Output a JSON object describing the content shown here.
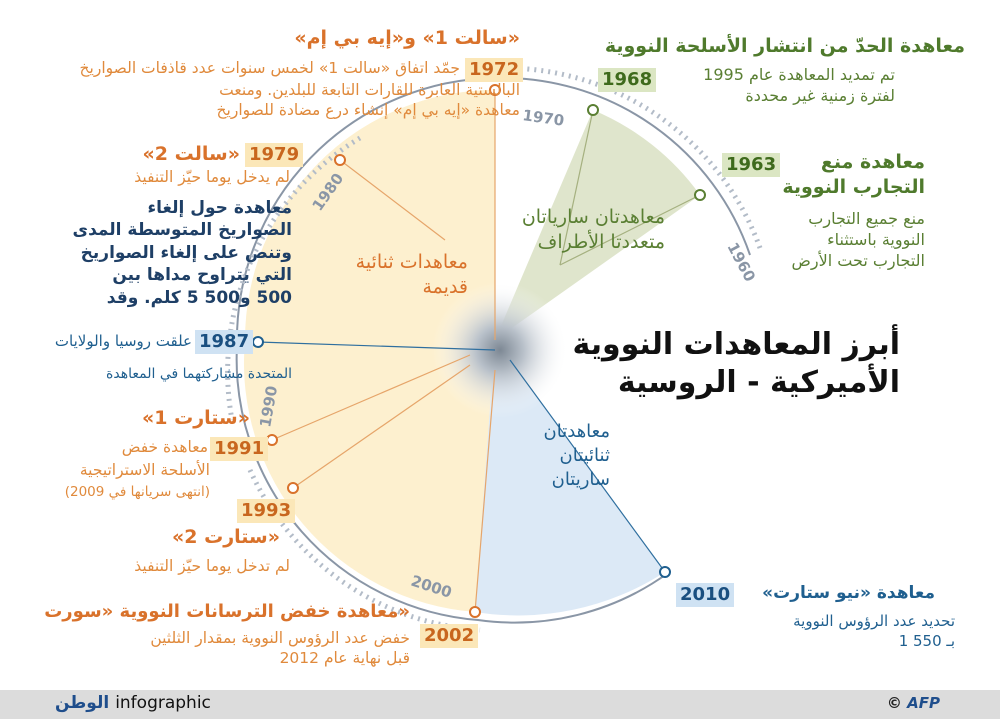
{
  "title_lines": [
    "أبرز المعاهدات النووية",
    "الأميركية - الروسية"
  ],
  "decade_labels": [
    "1960",
    "1970",
    "1980",
    "1990",
    "2000"
  ],
  "sectors": {
    "multilateral": [
      "معاهدتان سارياتان",
      "متعددتا الأطراف"
    ],
    "old_bilateral": [
      "معاهدات ثنائية",
      "قديمة"
    ],
    "bilateral_active": [
      "معاهدتان",
      "ثنائيتان",
      "ساريتان"
    ]
  },
  "events": {
    "e1972": {
      "year": "1972",
      "title": "«سالت 1» و«إيه بي إم»",
      "lines": [
        "جمّد اتفاق «سالت 1» لخمس سنوات عدد قاذفات الصواريخ",
        "البالستية العابرة للقارات التابعة للبلدين. ومنعت",
        "معاهدة «إيه بي إم» إنشاء درع مضادة للصواريخ"
      ]
    },
    "e1979": {
      "year": "1979",
      "title": "«سالت 2»",
      "lines": [
        "لم يدخل يوما حيّز التنفيذ"
      ]
    },
    "e1987": {
      "year": "1987",
      "title_lines": [
        "معاهدة حول إلغاء",
        "الصواريخ المتوسطة المدى",
        "وتنص على إلغاء الصواريخ",
        "التي يتراوح مداها بين",
        "500 و500 5 كلم. وقد"
      ],
      "line_after_year": "علقت روسيا والولايات",
      "last_line": "المتحدة مشاركتهما في المعاهدة"
    },
    "e1991": {
      "year": "1991",
      "title": "«ستارت 1»",
      "lines": [
        "معاهدة خفض",
        "الأسلحة الاستراتيجية",
        "(انتهى سريانها في 2009)"
      ]
    },
    "e1993": {
      "year": "1993",
      "title": "«ستارت 2»",
      "lines": [
        "لم تدخل يوما حيّز التنفيذ"
      ]
    },
    "e2002": {
      "year": "2002",
      "title": "«معاهدة خفض الترسانات النووية «سورت",
      "lines": [
        "خفض عدد الرؤوس النووية بمقدار الثلثين",
        "قبل نهاية عام 2012"
      ]
    },
    "e1968": {
      "year": "1968",
      "title": "معاهدة الحدّ من انتشار الأسلحة النووية",
      "lines": [
        "تم تمديد المعاهدة عام 1995",
        "لفترة زمنية غير محددة"
      ]
    },
    "e1963": {
      "year": "1963",
      "title_lines": [
        "معاهدة منع",
        "التجارب النووية"
      ],
      "lines": [
        "منع جميع التجارب",
        "النووية باستثناء",
        "التجارب تحت الأرض"
      ]
    },
    "e2010": {
      "year": "2010",
      "title": "معاهدة «نيو ستارت»",
      "lines": [
        "تحديد عدد الرؤوس النووية",
        "بـ 550 1"
      ]
    }
  },
  "footer": {
    "brand_ar": "الوطن",
    "brand_en": "infographic",
    "copyright": "©",
    "agency": "AFP"
  },
  "colors": {
    "orange": "#e08a3c",
    "orange_fill": "#fdf0cf",
    "green": "#5a7f33",
    "green_fill": "#dfe5cc",
    "blue": "#1f5f8f",
    "blue_fill": "#dce9f6",
    "ring": "#8a96a6"
  }
}
